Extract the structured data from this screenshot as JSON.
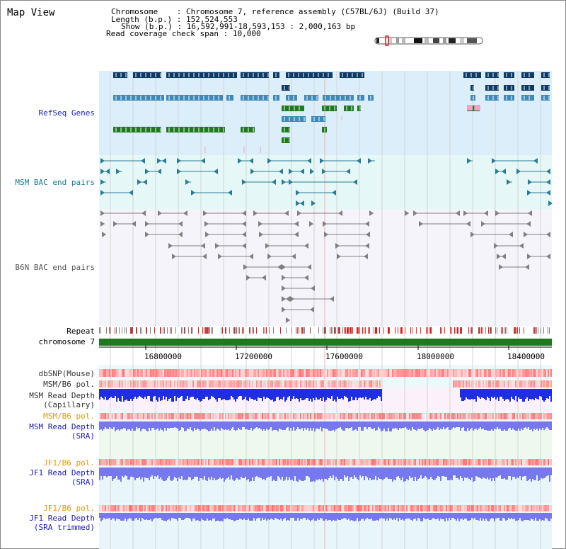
{
  "panel_title": "Map View",
  "header": {
    "chromosome_label": "Chromosome",
    "chromosome_value": "Chromosome 7, reference assembly (C57BL/6J) (Build 37)",
    "length_label": "Length (b.p.)",
    "length_value": "152,524,553",
    "show_label": "Show (b.p.)",
    "show_value": "16,592,991-18,593,153 : 2,000,163 bp",
    "coverage_label": "Read coverage check span",
    "coverage_value": "10,000"
  },
  "tracks": {
    "refseq": "RefSeq Genes",
    "msm_bac": "MSM BAC end pairs",
    "b6n_bac": "B6N BAC end pairs",
    "repeat": "Repeat",
    "chromosome": "chromosome 7",
    "dbsnp": "dbSNP(Mouse)",
    "msm_b6_pol_1": "MSM/B6 pol.",
    "msm_read_depth_cap_1": "MSM Read Depth",
    "msm_read_depth_cap_2": "(Capillary)",
    "msm_b6_pol_2": "MSM/B6 pol.",
    "msm_read_depth_sra_1": "MSM Read Depth",
    "msm_read_depth_sra_2": "(SRA)",
    "jf1_b6_pol_1": "JF1/B6 pol.",
    "jf1_read_depth_sra_1": "JF1 Read Depth",
    "jf1_read_depth_sra_2": "(SRA)",
    "jf1_b6_pol_2": "JF1/B6 pol.",
    "jf1_read_depth_trim_1": "JF1 Read Depth",
    "jf1_read_depth_trim_2": "(SRA trimmed)"
  },
  "axis": {
    "ticks": [
      "16800000",
      "17200000",
      "17600000",
      "18000000",
      "18400000"
    ]
  },
  "colors": {
    "refseq_bg": "#dbeef9",
    "msm_bac_bg": "#e6f7f7",
    "b6n_bg": "#f4f4fa",
    "dark_blue": "#0f3a66",
    "mid_blue": "#3f8ab8",
    "green": "#1f7a1f",
    "teal": "#2a7c95",
    "gray": "#808080",
    "red": "#e02020",
    "depth_blue": "#1e2ee0",
    "depth_light": "#7777ee",
    "pol_orange": "#e8a020",
    "label_blue": "#1b1bb0",
    "label_teal": "#1a7a8a",
    "label_orange": "#e09a10"
  }
}
